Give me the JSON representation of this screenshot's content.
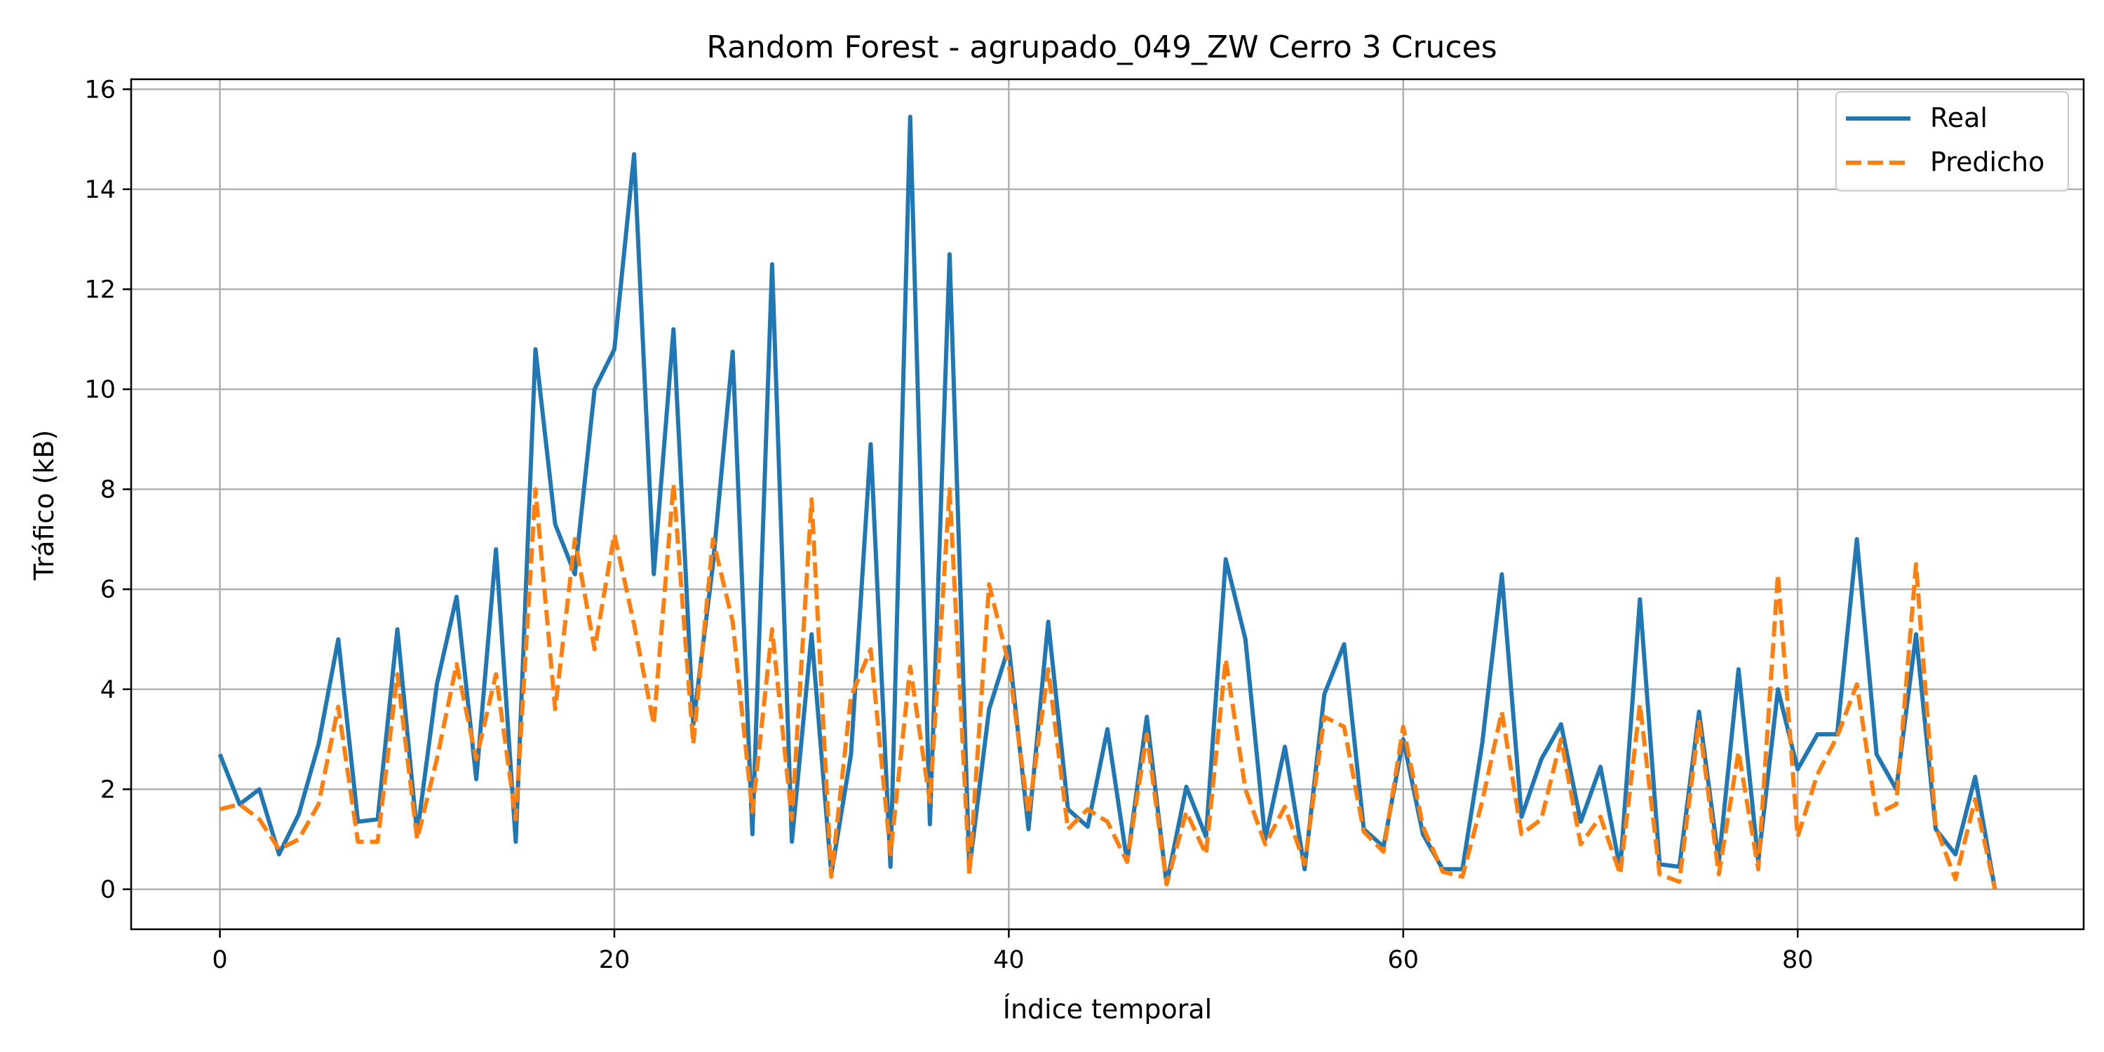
{
  "chart_data": {
    "type": "line",
    "title": "Random Forest - agrupado_049_ZW Cerro 3 Cruces",
    "xlabel": "Índice temporal",
    "ylabel": "Tráfico (kB)",
    "xlim": [
      -4.5,
      94.5
    ],
    "ylim": [
      -0.8,
      16.2
    ],
    "xticks": [
      0,
      20,
      40,
      60,
      80
    ],
    "yticks": [
      0,
      2,
      4,
      6,
      8,
      10,
      12,
      14,
      16
    ],
    "grid": true,
    "legend_position": "top-right",
    "series": [
      {
        "name": "Real",
        "color": "#1f77b4",
        "style": "solid",
        "values": [
          2.7,
          1.7,
          2.0,
          0.7,
          1.5,
          2.9,
          5.0,
          1.35,
          1.4,
          5.2,
          1.1,
          4.1,
          5.85,
          2.2,
          6.8,
          0.95,
          10.8,
          7.3,
          6.3,
          10.0,
          10.8,
          14.7,
          6.3,
          11.2,
          3.3,
          6.5,
          10.75,
          1.1,
          12.5,
          0.95,
          5.1,
          0.3,
          2.7,
          8.9,
          0.45,
          15.45,
          1.3,
          12.7,
          0.4,
          3.6,
          4.85,
          1.2,
          5.35,
          1.6,
          1.25,
          3.2,
          0.55,
          3.45,
          0.1,
          2.05,
          1.05,
          6.6,
          5.0,
          1.0,
          2.85,
          0.4,
          3.9,
          4.9,
          1.2,
          0.85,
          3.0,
          1.1,
          0.4,
          0.4,
          2.9,
          6.3,
          1.45,
          2.6,
          3.3,
          1.35,
          2.45,
          0.4,
          5.8,
          0.5,
          0.45,
          3.55,
          0.55,
          4.4,
          0.55,
          4.0,
          2.4,
          3.1,
          3.1,
          7.0,
          2.7,
          2.0,
          5.1,
          1.2,
          0.7,
          2.25,
          0.0
        ]
      },
      {
        "name": "Predicho",
        "color": "#ff7f0e",
        "style": "dashed",
        "values": [
          1.6,
          1.7,
          1.4,
          0.8,
          1.0,
          1.7,
          3.65,
          0.95,
          0.95,
          4.3,
          1.0,
          2.6,
          4.5,
          2.6,
          4.3,
          1.4,
          8.0,
          3.6,
          7.0,
          4.8,
          7.1,
          5.3,
          3.3,
          8.1,
          2.9,
          7.0,
          5.35,
          1.55,
          5.2,
          1.4,
          7.8,
          0.25,
          3.85,
          4.8,
          0.7,
          4.45,
          1.75,
          8.0,
          0.3,
          6.1,
          4.5,
          1.5,
          4.4,
          1.2,
          1.6,
          1.35,
          0.55,
          3.1,
          0.1,
          1.55,
          0.7,
          4.6,
          2.0,
          0.9,
          1.65,
          0.5,
          3.45,
          3.25,
          1.15,
          0.75,
          3.25,
          1.25,
          0.35,
          0.25,
          1.75,
          3.55,
          1.1,
          1.4,
          3.0,
          0.9,
          1.45,
          0.3,
          3.7,
          0.3,
          0.15,
          3.35,
          0.3,
          2.75,
          0.4,
          6.3,
          1.05,
          2.3,
          3.05,
          4.1,
          1.5,
          1.7,
          6.5,
          1.25,
          0.2,
          1.8,
          0.0
        ]
      }
    ]
  }
}
